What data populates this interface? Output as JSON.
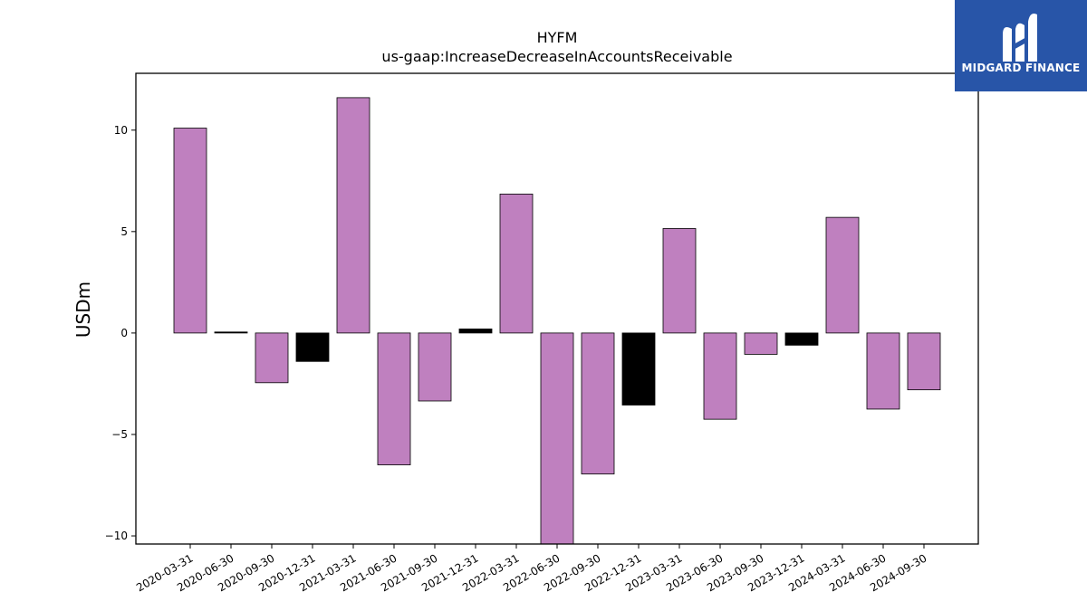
{
  "chart_data": {
    "type": "bar",
    "title": "HYFM",
    "subtitle": "us-gaap:IncreaseDecreaseInAccountsReceivable",
    "xlabel": "",
    "ylabel": "USDm",
    "ylim": [
      -10.4,
      12.8
    ],
    "yticks": [
      -10,
      -5,
      0,
      5,
      10
    ],
    "ytick_labels": [
      "−10",
      "−5",
      "0",
      "5",
      "10"
    ],
    "grid": false,
    "categories": [
      "2020-03-31",
      "2020-06-30",
      "2020-09-30",
      "2020-12-31",
      "2021-03-31",
      "2021-06-30",
      "2021-09-30",
      "2021-12-31",
      "2022-03-31",
      "2022-06-30",
      "2022-09-30",
      "2022-12-31",
      "2023-03-31",
      "2023-06-30",
      "2023-09-30",
      "2023-12-31",
      "2024-03-31",
      "2024-06-30",
      "2024-09-30"
    ],
    "values": [
      10.1,
      0.05,
      -2.45,
      -1.4,
      11.6,
      -6.5,
      -3.35,
      0.2,
      6.85,
      -10.4,
      -6.95,
      -3.55,
      5.15,
      -4.25,
      -1.05,
      -0.6,
      5.7,
      -3.75,
      -2.8
    ],
    "colors": [
      "#bf80bf",
      "#000000",
      "#bf80bf",
      "#000000",
      "#bf80bf",
      "#bf80bf",
      "#bf80bf",
      "#000000",
      "#bf80bf",
      "#bf80bf",
      "#bf80bf",
      "#000000",
      "#bf80bf",
      "#bf80bf",
      "#bf80bf",
      "#000000",
      "#bf80bf",
      "#bf80bf",
      "#bf80bf"
    ]
  },
  "logo": {
    "text": "MIDGARD FINANCE",
    "background": "#2855a8"
  }
}
